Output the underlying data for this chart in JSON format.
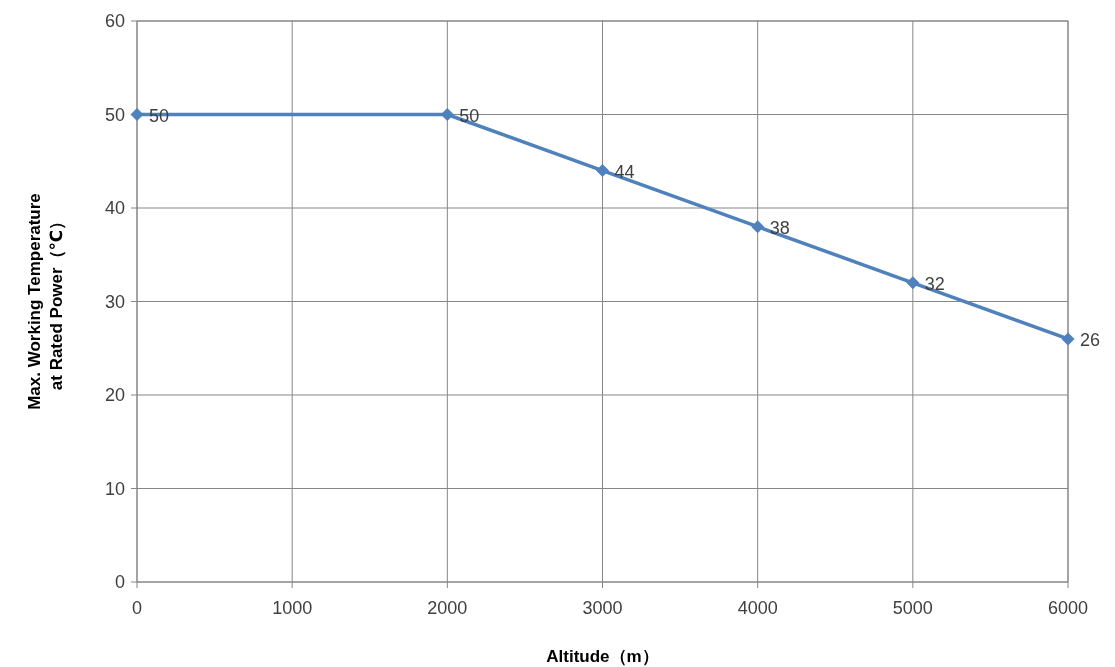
{
  "chart_data": {
    "type": "line",
    "xlabel": "Altitude（m）",
    "ylabel": "Max. Working Temperature\nat Rated Power（℃）",
    "x": [
      0,
      2000,
      3000,
      4000,
      5000,
      6000
    ],
    "series": [
      {
        "color": "#4f81bd",
        "values": [
          50,
          50,
          44,
          38,
          32,
          26
        ]
      }
    ],
    "xlim": [
      0,
      6000
    ],
    "xticks": [
      0,
      1000,
      2000,
      3000,
      4000,
      5000,
      6000
    ],
    "ylim": [
      0,
      60
    ],
    "yticks": [
      0,
      10,
      20,
      30,
      40,
      50,
      60
    ],
    "grid": true,
    "marker": "diamond",
    "line_style": "solid",
    "data_labels": true
  }
}
